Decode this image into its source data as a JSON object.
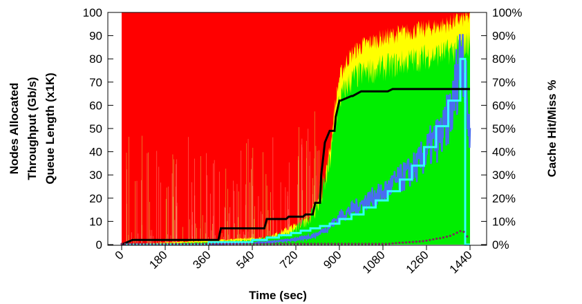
{
  "chart_data": {
    "type": "area",
    "title": "",
    "xlabel": "Time (sec)",
    "ylabel_lines": [
      "Nodes Allocated",
      "Throughput (Gb/s)",
      "Queue Length (x1K)"
    ],
    "y2label": "Cache Hit/Miss %",
    "xlim": [
      0,
      1440
    ],
    "ylim": [
      0,
      100
    ],
    "y2lim": [
      0,
      100
    ],
    "x_ticks": [
      "0",
      "180",
      "360",
      "540",
      "720",
      "900",
      "1080",
      "1260",
      "1440"
    ],
    "y_ticks": [
      "0",
      "10",
      "20",
      "30",
      "40",
      "50",
      "60",
      "70",
      "80",
      "90",
      "100"
    ],
    "y2_ticks": [
      "0%",
      "10%",
      "20%",
      "30%",
      "40%",
      "50%",
      "60%",
      "70%",
      "80%",
      "90%",
      "100%"
    ],
    "grid": false,
    "legend": "none",
    "colors": {
      "miss": "#ff0000",
      "hit_global": "#00ee00",
      "hit_local": "#ffff00",
      "throughput": "#4a6cf0",
      "nodes": "#000000",
      "queue": "#33ffff",
      "cache_dots": "#7a2a5a"
    },
    "series": [
      {
        "role": "hit_global_area_top",
        "x": [
          0,
          180,
          360,
          540,
          600,
          700,
          760,
          800,
          830,
          860,
          880,
          900,
          930,
          960,
          1000,
          1080,
          1150,
          1260,
          1350,
          1400,
          1440
        ],
        "values": [
          0,
          0.5,
          1,
          2,
          3,
          5,
          10,
          15,
          22,
          35,
          50,
          62,
          68,
          72,
          74,
          76,
          78,
          81,
          83,
          85,
          87
        ]
      },
      {
        "role": "hit_local_area_top",
        "x": [
          0,
          600,
          760,
          800,
          830,
          860,
          880,
          900,
          930,
          960,
          1000,
          1080,
          1150,
          1260,
          1350,
          1400,
          1440
        ],
        "values": [
          0,
          3,
          10,
          16,
          24,
          40,
          58,
          72,
          79,
          83,
          86,
          89,
          91,
          93,
          95,
          97,
          98
        ]
      },
      {
        "role": "throughput",
        "x": [
          0,
          360,
          600,
          700,
          760,
          800,
          850,
          880,
          900,
          950,
          1000,
          1050,
          1080,
          1120,
          1150,
          1200,
          1230,
          1260,
          1300,
          1330,
          1350,
          1370,
          1390,
          1410,
          1420,
          1440
        ],
        "values": [
          0,
          0,
          1,
          2,
          3,
          4,
          7,
          10,
          12,
          15,
          18,
          21,
          22,
          26,
          28,
          32,
          35,
          40,
          45,
          48,
          55,
          60,
          75,
          85,
          70,
          45
        ]
      },
      {
        "role": "nodes_allocated",
        "x": [
          0,
          45,
          400,
          410,
          500,
          590,
          600,
          680,
          690,
          750,
          760,
          790,
          800,
          820,
          825,
          840,
          860,
          880,
          885,
          900,
          905,
          950,
          955,
          990,
          1000,
          1100,
          1120,
          1200,
          1250,
          1440
        ],
        "values": [
          0,
          2,
          2,
          7,
          7,
          7,
          11,
          11,
          12,
          12,
          13,
          13,
          18,
          18,
          30,
          44,
          49,
          49,
          55,
          62,
          62,
          64,
          64,
          66,
          66,
          66,
          67,
          67,
          67,
          67
        ]
      },
      {
        "role": "queue_length",
        "x": [
          0,
          360,
          360,
          540,
          540,
          600,
          600,
          650,
          650,
          700,
          700,
          740,
          740,
          780,
          780,
          820,
          820,
          860,
          860,
          900,
          900,
          950,
          950,
          1000,
          1000,
          1050,
          1050,
          1100,
          1100,
          1150,
          1150,
          1200,
          1200,
          1250,
          1250,
          1300,
          1300,
          1350,
          1350,
          1400,
          1400,
          1420,
          1420,
          1440
        ],
        "values": [
          0,
          0,
          1,
          1,
          2,
          2,
          3,
          3,
          4,
          4,
          5,
          5,
          6,
          6,
          7,
          7,
          8,
          8,
          9,
          9,
          11,
          11,
          13,
          13,
          16,
          16,
          19,
          19,
          23,
          23,
          28,
          28,
          34,
          34,
          42,
          42,
          51,
          51,
          62,
          62,
          80,
          80,
          0,
          0
        ]
      },
      {
        "role": "cache_dots",
        "x": [
          0,
          200,
          400,
          600,
          800,
          900,
          1000,
          1100,
          1150,
          1200,
          1250,
          1280,
          1300,
          1320,
          1340,
          1360,
          1380,
          1400,
          1410,
          1420,
          1440
        ],
        "values": [
          0,
          0,
          0,
          0,
          0,
          0,
          0,
          0,
          0.5,
          0.8,
          1.2,
          1.8,
          2.2,
          2.5,
          3,
          3.5,
          4.5,
          5.5,
          6,
          4,
          2
        ]
      }
    ]
  }
}
